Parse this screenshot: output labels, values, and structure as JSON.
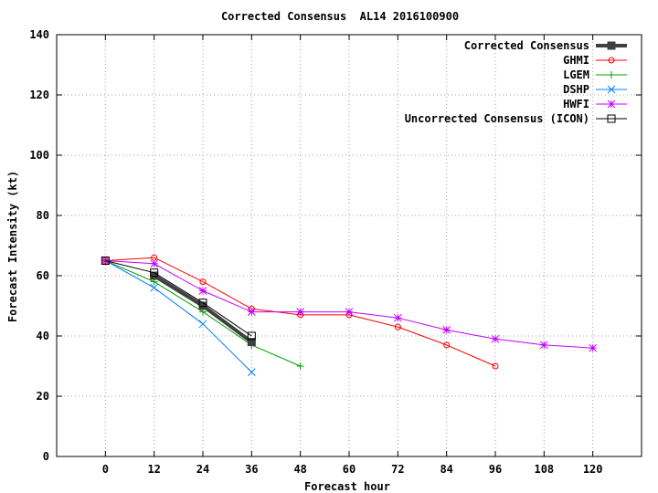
{
  "chart_data": {
    "type": "line",
    "title": "Corrected Consensus  AL14 2016100900",
    "xlabel": "Forecast hour",
    "ylabel": "Forecast Intensity (kt)",
    "xlim": [
      -12,
      132
    ],
    "ylim": [
      0,
      140
    ],
    "xticks": [
      0,
      12,
      24,
      36,
      48,
      60,
      72,
      84,
      96,
      108,
      120
    ],
    "yticks": [
      0,
      20,
      40,
      60,
      80,
      100,
      120,
      140
    ],
    "grid": true,
    "legend_position": "top-right",
    "series": [
      {
        "name": "Corrected Consensus",
        "color": "#404040",
        "marker": "filled-square",
        "line_width": 4,
        "x": [
          12,
          24,
          36
        ],
        "y": [
          60,
          50,
          38
        ]
      },
      {
        "name": "GHMI",
        "color": "#ff0000",
        "marker": "circle",
        "line_width": 1,
        "x": [
          0,
          12,
          24,
          36,
          48,
          60,
          72,
          84,
          96
        ],
        "y": [
          65,
          66,
          58,
          49,
          47,
          47,
          43,
          37,
          30
        ]
      },
      {
        "name": "LGEM",
        "color": "#00a000",
        "marker": "plus",
        "line_width": 1,
        "x": [
          0,
          12,
          24,
          36,
          48
        ],
        "y": [
          65,
          58,
          48,
          37,
          30
        ]
      },
      {
        "name": "DSHP",
        "color": "#0080ff",
        "marker": "x",
        "line_width": 1,
        "x": [
          0,
          12,
          24,
          36
        ],
        "y": [
          65,
          56,
          44,
          28
        ]
      },
      {
        "name": "HWFI",
        "color": "#c000ff",
        "marker": "star",
        "line_width": 1,
        "x": [
          0,
          12,
          24,
          36,
          48,
          60,
          72,
          84,
          96,
          108,
          120
        ],
        "y": [
          65,
          64,
          55,
          48,
          48,
          48,
          46,
          42,
          39,
          37,
          36
        ]
      },
      {
        "name": "Uncorrected Consensus (ICON)",
        "color": "#000000",
        "marker": "open-square",
        "line_width": 1,
        "x": [
          0,
          12,
          24,
          36
        ],
        "y": [
          65,
          61,
          51,
          40
        ]
      }
    ]
  }
}
